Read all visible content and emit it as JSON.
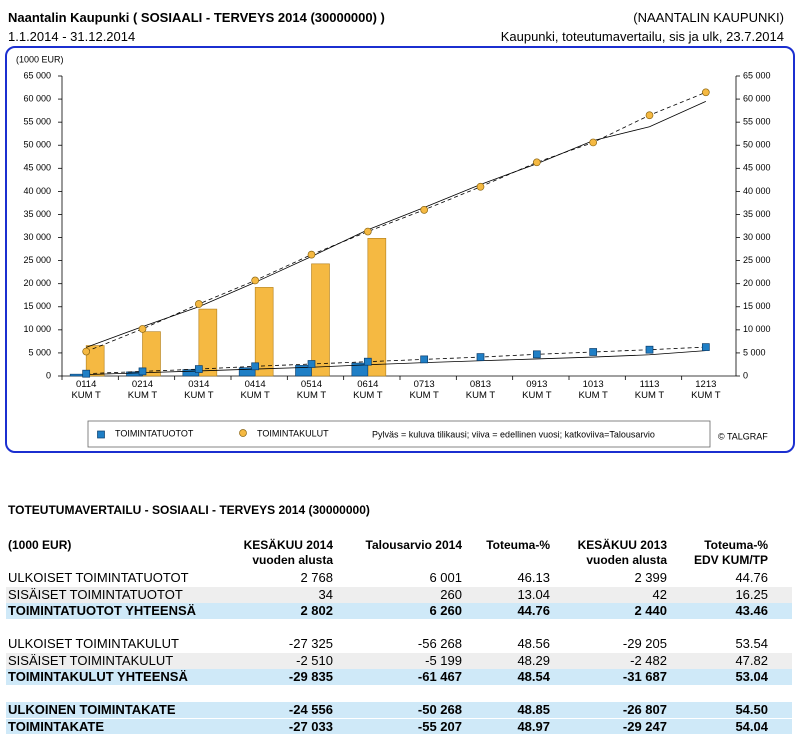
{
  "header": {
    "title": "Naantalin Kaupunki ( SOSIAALI - TERVEYS 2014 (30000000) )",
    "organization": "(NAANTALIN KAUPUNKI)",
    "period": "1.1.2014 - 31.12.2014",
    "report": "Kaupunki, toteutumavertailu, sis ja ulk, 23.7.2014"
  },
  "chart_data": {
    "type": "bar-line",
    "y_label": "(1000 EUR)",
    "categories": [
      "0114 KUM T",
      "0214 KUM T",
      "0314 KUM T",
      "0414 KUM T",
      "0514 KUM T",
      "0614 KUM T",
      "0713 KUM T",
      "0813 KUM T",
      "0913 KUM T",
      "1013 KUM T",
      "1113 KUM T",
      "1213 KUM T"
    ],
    "ylim": [
      0,
      65000
    ],
    "y2lim": [
      0,
      65000
    ],
    "yticks": [
      0,
      {
        "value": 5000,
        "label": "5 000"
      },
      {
        "value": 10000,
        "label": "10 000"
      },
      {
        "value": 15000,
        "label": "15 000"
      },
      {
        "value": 20000,
        "label": "20 000"
      },
      {
        "value": 25000,
        "label": "25 000"
      },
      {
        "value": 30000,
        "label": "30 000"
      },
      {
        "value": 35000,
        "label": "35 000"
      },
      {
        "value": 40000,
        "label": "40 000"
      },
      {
        "value": 45000,
        "label": "45 000"
      },
      {
        "value": 50000,
        "label": "50 000"
      },
      {
        "value": 55000,
        "label": "55 000"
      },
      {
        "value": 60000,
        "label": "60 000"
      },
      {
        "value": 65000,
        "label": "65 000"
      }
    ],
    "series": [
      {
        "name": "TOIMINTATUOTOT",
        "color": "#1f7fc6",
        "marker": "square",
        "bar_values": [
          400,
          900,
          1400,
          1800,
          2300,
          2802,
          null,
          null,
          null,
          null,
          null,
          null
        ],
        "previous_year": [
          300,
          700,
          1100,
          1500,
          1900,
          2440,
          2900,
          3300,
          3700,
          4100,
          4600,
          5500
        ],
        "budget": [
          500,
          1000,
          1500,
          2100,
          2600,
          3100,
          3600,
          4100,
          4700,
          5200,
          5700,
          6260
        ]
      },
      {
        "name": "TOIMINTAKULUT",
        "color": "#f5b942",
        "marker": "circle",
        "bar_values": [
          6600,
          9600,
          14500,
          19200,
          24300,
          29835,
          null,
          null,
          null,
          null,
          null,
          null
        ],
        "previous_year": [
          6200,
          10700,
          15000,
          20300,
          25900,
          31687,
          36500,
          41500,
          46000,
          51000,
          54000,
          59500
        ],
        "budget": [
          5300,
          10200,
          15600,
          20700,
          26300,
          31300,
          36000,
          41000,
          46300,
          50600,
          56500,
          61467
        ]
      }
    ],
    "note": "Pylväs = kuluva tilikausi; viiva = edellinen vuosi; katkoviiva=Talousarvio",
    "credit": "© TALGRAF"
  },
  "table": {
    "title": "TOTEUTUMAVERTAILU - SOSIAALI - TERVEYS 2014 (30000000)",
    "columns": [
      [
        "(1000 EUR)"
      ],
      [
        "KESÄKUU 2014",
        "vuoden alusta"
      ],
      [
        "Talousarvio 2014"
      ],
      [
        "Toteuma-%"
      ],
      [
        "KESÄKUU 2013",
        "vuoden alusta"
      ],
      [
        "Toteuma-%",
        "EDV KUM/TP"
      ]
    ],
    "groups": [
      [
        {
          "cells": [
            "ULKOISET TOIMINTATUOTOT",
            "2 768",
            "6 001",
            "46.13",
            "2 399",
            "44.76"
          ],
          "style": "plain"
        },
        {
          "cells": [
            "SISÄISET TOIMINTATUOTOT",
            "34",
            "260",
            "13.04",
            "42",
            "16.25"
          ],
          "style": "alt"
        },
        {
          "cells": [
            "TOIMINTATUOTOT YHTEENSÄ",
            "2 802",
            "6 260",
            "44.76",
            "2 440",
            "43.46"
          ],
          "style": "total"
        }
      ],
      [
        {
          "cells": [
            "ULKOISET TOIMINTAKULUT",
            "-27 325",
            "-56 268",
            "48.56",
            "-29 205",
            "53.54"
          ],
          "style": "plain"
        },
        {
          "cells": [
            "SISÄISET TOIMINTAKULUT",
            "-2 510",
            "-5 199",
            "48.29",
            "-2 482",
            "47.82"
          ],
          "style": "alt"
        },
        {
          "cells": [
            "TOIMINTAKULUT YHTEENSÄ",
            "-29 835",
            "-61 467",
            "48.54",
            "-31 687",
            "53.04"
          ],
          "style": "total"
        }
      ],
      [
        {
          "cells": [
            "ULKOINEN TOIMINTAKATE",
            "-24 556",
            "-50 268",
            "48.85",
            "-26 807",
            "54.50"
          ],
          "style": "total"
        },
        {
          "cells": [
            "TOIMINTAKATE",
            "-27 033",
            "-55 207",
            "48.97",
            "-29 247",
            "54.04"
          ],
          "style": "total"
        }
      ]
    ]
  }
}
